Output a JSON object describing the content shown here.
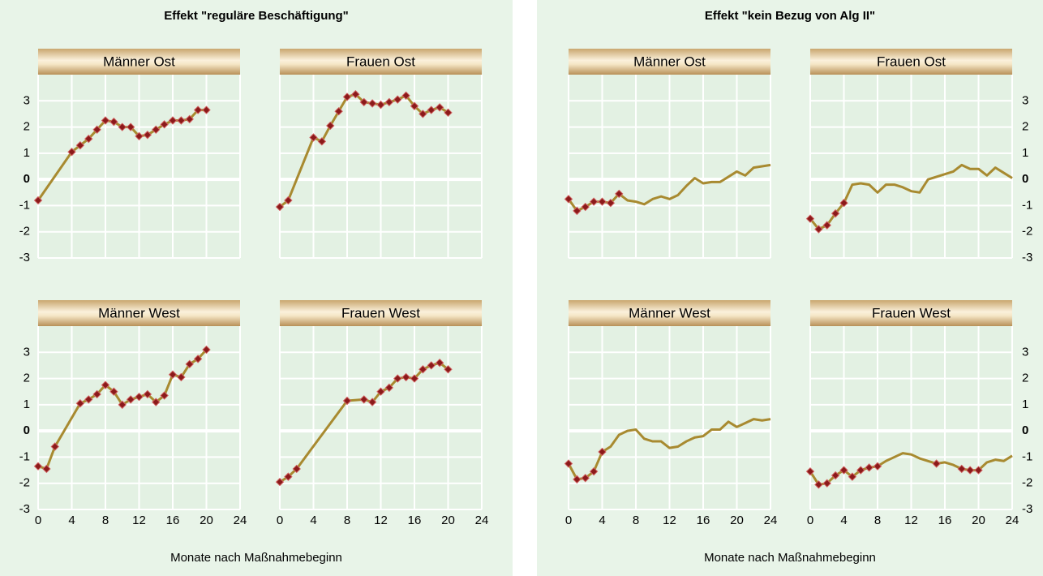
{
  "sections": [
    {
      "title": "Effekt \"reguläre Beschäftigung\"",
      "x_label": "Monate nach Maßnahmebeginn"
    },
    {
      "title": "Effekt \"kein Bezug von Alg II\"",
      "x_label": "Monate nach Maßnahmebeginn"
    }
  ],
  "chart_data": [
    {
      "type": "line",
      "title": "Männer Ost",
      "color": "#a88a30",
      "marker_color": "#8b1a1a",
      "grid": true,
      "xlim": [
        0,
        24
      ],
      "ylim": [
        -3,
        4
      ],
      "xticks": [
        0,
        4,
        8,
        12,
        16,
        20,
        24
      ],
      "yticks": [
        -3,
        -2,
        -1,
        0,
        1,
        2,
        3
      ],
      "x": [
        0,
        4,
        5,
        6,
        7,
        8,
        9,
        10,
        11,
        12,
        13,
        14,
        15,
        16,
        17,
        18,
        19,
        20
      ],
      "values": [
        -0.8,
        1.05,
        1.3,
        1.55,
        1.9,
        2.25,
        2.2,
        2.0,
        2.0,
        1.65,
        1.7,
        1.9,
        2.1,
        2.25,
        2.25,
        2.3,
        2.65,
        2.65
      ],
      "marked": [
        true,
        true,
        true,
        true,
        true,
        true,
        true,
        true,
        true,
        true,
        true,
        true,
        true,
        true,
        true,
        true,
        true,
        true
      ]
    },
    {
      "type": "line",
      "title": "Frauen Ost",
      "color": "#a88a30",
      "marker_color": "#8b1a1a",
      "grid": true,
      "xlim": [
        0,
        24
      ],
      "ylim": [
        -3,
        4
      ],
      "xticks": [
        0,
        4,
        8,
        12,
        16,
        20,
        24
      ],
      "yticks": [
        -3,
        -2,
        -1,
        0,
        1,
        2,
        3
      ],
      "x": [
        0,
        1,
        4,
        5,
        6,
        7,
        8,
        9,
        10,
        11,
        12,
        13,
        14,
        15,
        16,
        17,
        18,
        19,
        20
      ],
      "values": [
        -1.05,
        -0.8,
        1.6,
        1.45,
        2.05,
        2.6,
        3.15,
        3.25,
        2.95,
        2.9,
        2.85,
        2.95,
        3.05,
        3.2,
        2.8,
        2.5,
        2.65,
        2.75,
        2.55
      ],
      "marked": [
        true,
        true,
        true,
        true,
        true,
        true,
        true,
        true,
        true,
        true,
        true,
        true,
        true,
        true,
        true,
        true,
        true,
        true,
        true
      ]
    },
    {
      "type": "line",
      "title": "Männer West",
      "color": "#a88a30",
      "marker_color": "#8b1a1a",
      "grid": true,
      "xlim": [
        0,
        24
      ],
      "ylim": [
        -3,
        4
      ],
      "xticks": [
        0,
        4,
        8,
        12,
        16,
        20,
        24
      ],
      "yticks": [
        -3,
        -2,
        -1,
        0,
        1,
        2,
        3
      ],
      "x": [
        0,
        1,
        2,
        5,
        6,
        7,
        8,
        9,
        10,
        11,
        12,
        13,
        14,
        15,
        16,
        17,
        18,
        19,
        20
      ],
      "values": [
        -1.35,
        -1.45,
        -0.6,
        1.05,
        1.2,
        1.4,
        1.75,
        1.5,
        1.0,
        1.2,
        1.3,
        1.4,
        1.1,
        1.35,
        2.15,
        2.05,
        2.55,
        2.75,
        3.1
      ],
      "marked": [
        true,
        true,
        true,
        true,
        true,
        true,
        true,
        true,
        true,
        true,
        true,
        true,
        true,
        true,
        true,
        true,
        true,
        true,
        true
      ]
    },
    {
      "type": "line",
      "title": "Frauen West",
      "color": "#a88a30",
      "marker_color": "#8b1a1a",
      "grid": true,
      "xlim": [
        0,
        24
      ],
      "ylim": [
        -3,
        4
      ],
      "xticks": [
        0,
        4,
        8,
        12,
        16,
        20,
        24
      ],
      "yticks": [
        -3,
        -2,
        -1,
        0,
        1,
        2,
        3
      ],
      "x": [
        0,
        1,
        2,
        8,
        10,
        11,
        12,
        13,
        14,
        15,
        16,
        17,
        18,
        19,
        20
      ],
      "values": [
        -1.95,
        -1.75,
        -1.45,
        1.15,
        1.2,
        1.1,
        1.5,
        1.65,
        2.0,
        2.05,
        2.0,
        2.35,
        2.5,
        2.6,
        2.35
      ],
      "marked": [
        true,
        true,
        true,
        true,
        true,
        true,
        true,
        true,
        true,
        true,
        true,
        true,
        true,
        true,
        true
      ]
    },
    {
      "type": "line",
      "title": "Männer Ost",
      "color": "#a88a30",
      "marker_color": "#8b1a1a",
      "grid": true,
      "xlim": [
        0,
        24
      ],
      "ylim": [
        -3,
        4
      ],
      "xticks": [
        0,
        4,
        8,
        12,
        16,
        20,
        24
      ],
      "yticks": [
        -3,
        -2,
        -1,
        0,
        1,
        2,
        3
      ],
      "x": [
        0,
        1,
        2,
        3,
        4,
        5,
        6,
        7,
        8,
        9,
        10,
        11,
        12,
        13,
        14,
        15,
        16,
        17,
        18,
        19,
        20,
        21,
        22,
        23,
        24
      ],
      "values": [
        -0.75,
        -1.2,
        -1.05,
        -0.85,
        -0.85,
        -0.9,
        -0.55,
        -0.8,
        -0.85,
        -0.95,
        -0.75,
        -0.65,
        -0.75,
        -0.6,
        -0.25,
        0.05,
        -0.15,
        -0.1,
        -0.1,
        0.1,
        0.3,
        0.15,
        0.45,
        0.5,
        0.55
      ],
      "marked": [
        true,
        true,
        true,
        true,
        true,
        true,
        true,
        false,
        false,
        false,
        false,
        false,
        false,
        false,
        false,
        false,
        false,
        false,
        false,
        false,
        false,
        false,
        false,
        false,
        false
      ]
    },
    {
      "type": "line",
      "title": "Frauen Ost",
      "color": "#a88a30",
      "marker_color": "#8b1a1a",
      "grid": true,
      "xlim": [
        0,
        24
      ],
      "ylim": [
        -3,
        4
      ],
      "xticks": [
        0,
        4,
        8,
        12,
        16,
        20,
        24
      ],
      "yticks": [
        -3,
        -2,
        -1,
        0,
        1,
        2,
        3
      ],
      "x": [
        0,
        1,
        2,
        3,
        4,
        5,
        6,
        7,
        8,
        9,
        10,
        11,
        12,
        13,
        14,
        15,
        16,
        17,
        18,
        19,
        20,
        21,
        22,
        23,
        24
      ],
      "values": [
        -1.5,
        -1.9,
        -1.75,
        -1.3,
        -0.9,
        -0.2,
        -0.15,
        -0.2,
        -0.5,
        -0.2,
        -0.2,
        -0.3,
        -0.45,
        -0.5,
        0.0,
        0.1,
        0.2,
        0.3,
        0.55,
        0.4,
        0.4,
        0.15,
        0.45,
        0.25,
        0.05
      ],
      "marked": [
        true,
        true,
        true,
        true,
        true,
        false,
        false,
        false,
        false,
        false,
        false,
        false,
        false,
        false,
        false,
        false,
        false,
        false,
        false,
        false,
        false,
        false,
        false,
        false,
        false
      ]
    },
    {
      "type": "line",
      "title": "Männer West",
      "color": "#a88a30",
      "marker_color": "#8b1a1a",
      "grid": true,
      "xlim": [
        0,
        24
      ],
      "ylim": [
        -3,
        4
      ],
      "xticks": [
        0,
        4,
        8,
        12,
        16,
        20,
        24
      ],
      "yticks": [
        -3,
        -2,
        -1,
        0,
        1,
        2,
        3
      ],
      "x": [
        0,
        1,
        2,
        3,
        4,
        5,
        6,
        7,
        8,
        9,
        10,
        11,
        12,
        13,
        14,
        15,
        16,
        17,
        18,
        19,
        20,
        21,
        22,
        23,
        24
      ],
      "values": [
        -1.25,
        -1.85,
        -1.8,
        -1.55,
        -0.8,
        -0.6,
        -0.15,
        0.0,
        0.05,
        -0.3,
        -0.4,
        -0.4,
        -0.65,
        -0.6,
        -0.4,
        -0.25,
        -0.2,
        0.05,
        0.05,
        0.35,
        0.15,
        0.3,
        0.45,
        0.4,
        0.45
      ],
      "marked": [
        true,
        true,
        true,
        true,
        true,
        false,
        false,
        false,
        false,
        false,
        false,
        false,
        false,
        false,
        false,
        false,
        false,
        false,
        false,
        false,
        false,
        false,
        false,
        false,
        false
      ]
    },
    {
      "type": "line",
      "title": "Frauen West",
      "color": "#a88a30",
      "marker_color": "#8b1a1a",
      "grid": true,
      "xlim": [
        0,
        24
      ],
      "ylim": [
        -3,
        4
      ],
      "xticks": [
        0,
        4,
        8,
        12,
        16,
        20,
        24
      ],
      "yticks": [
        -3,
        -2,
        -1,
        0,
        1,
        2,
        3
      ],
      "x": [
        0,
        1,
        2,
        3,
        4,
        5,
        6,
        7,
        8,
        9,
        10,
        11,
        12,
        13,
        14,
        15,
        16,
        17,
        18,
        19,
        20,
        21,
        22,
        23,
        24
      ],
      "values": [
        -1.55,
        -2.05,
        -2.0,
        -1.7,
        -1.5,
        -1.75,
        -1.5,
        -1.4,
        -1.35,
        -1.15,
        -1.0,
        -0.85,
        -0.9,
        -1.05,
        -1.15,
        -1.25,
        -1.2,
        -1.3,
        -1.45,
        -1.5,
        -1.5,
        -1.2,
        -1.1,
        -1.15,
        -0.95
      ],
      "marked": [
        true,
        true,
        true,
        true,
        true,
        true,
        true,
        true,
        true,
        false,
        false,
        false,
        false,
        false,
        false,
        true,
        false,
        false,
        true,
        true,
        true,
        false,
        false,
        false,
        false
      ]
    }
  ]
}
